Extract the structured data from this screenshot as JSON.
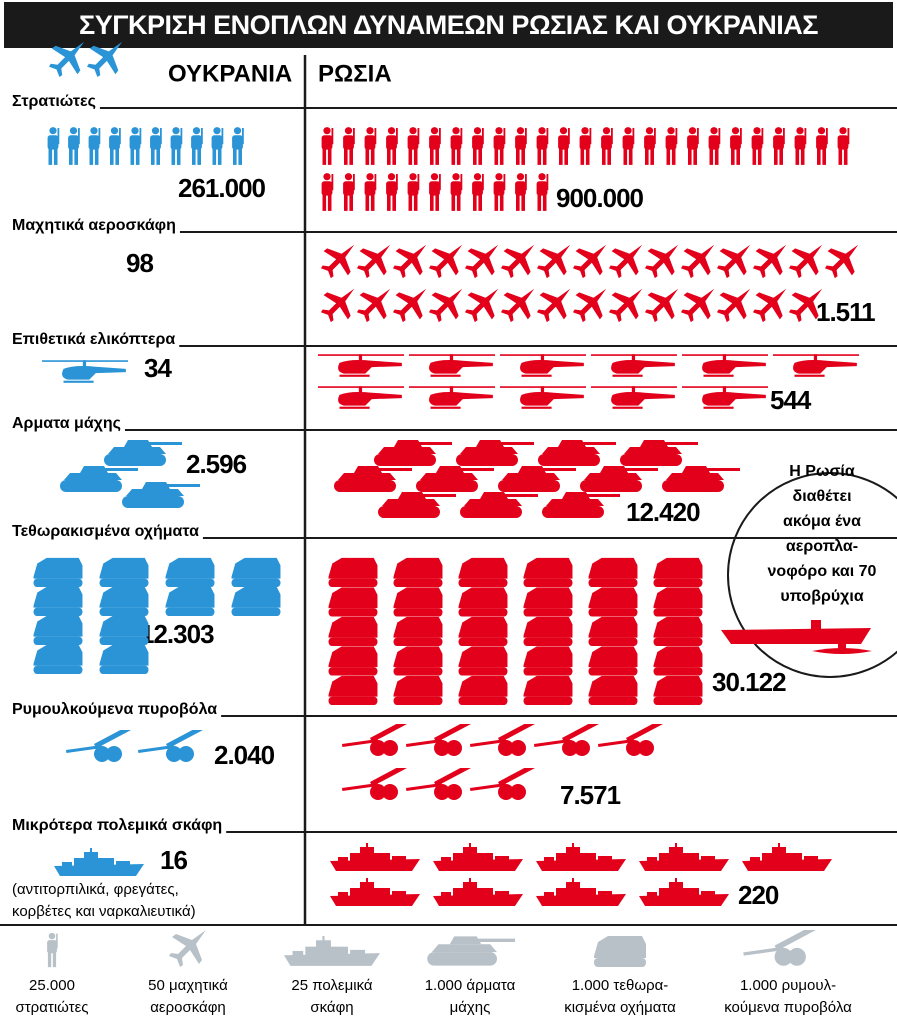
{
  "title": "ΣΥΓΚΡΙΣΗ ΕΝΟΠΛΩΝ ΔΥΝΑΜΕΩΝ ΡΩΣΙΑΣ ΚΑΙ ΟΥΚΡΑΝΙΑΣ",
  "headers": {
    "ukraine": "ΟΥΚΡΑΝΙΑ",
    "russia": "ΡΩΣΙΑ"
  },
  "rows": [
    {
      "label": "Στρατιώτες",
      "ukraine": "261.000",
      "russia": "900.000"
    },
    {
      "label": "Μαχητικά αεροσκάφη",
      "ukraine": "98",
      "russia": "1.511"
    },
    {
      "label": "Επιθετικά ελικόπτερα",
      "ukraine": "34",
      "russia": "544"
    },
    {
      "label": "Αρματα μάχης",
      "ukraine": "2.596",
      "russia": "12.420"
    },
    {
      "label": "Τεθωρακισμένα οχήματα",
      "ukraine": "12.303",
      "russia": "30.122"
    },
    {
      "label": "Ρυμουλκούμενα πυροβόλα",
      "ukraine": "2.040",
      "russia": "7.571"
    },
    {
      "label": "Μικρότερα πολεμικά σκάφη",
      "ukraine": "16",
      "russia": "220"
    }
  ],
  "ships_note": [
    "(αντιτορπιλικά, φρεγάτες,",
    "κορβέτες και ναρκαλιευτικά)"
  ],
  "russia_note": [
    "Η Ρωσία",
    "διαθέτει",
    "ακόμα ένα",
    "αεροπλα-",
    "νοφόρο και 70",
    "υποβρύχια"
  ],
  "legend": [
    [
      "25.000",
      "στρατιώτες"
    ],
    [
      "50 μαχητικά",
      "αεροσκάφη"
    ],
    [
      "25 πολεμικά",
      "σκάφη"
    ],
    [
      "1.000 άρματα",
      "μάχης"
    ],
    [
      "1.000 τεθωρα-",
      "κισμένα οχήματα"
    ],
    [
      "1.000 ρυμουλ-",
      "κούμενα πυροβόλα"
    ]
  ]
}
